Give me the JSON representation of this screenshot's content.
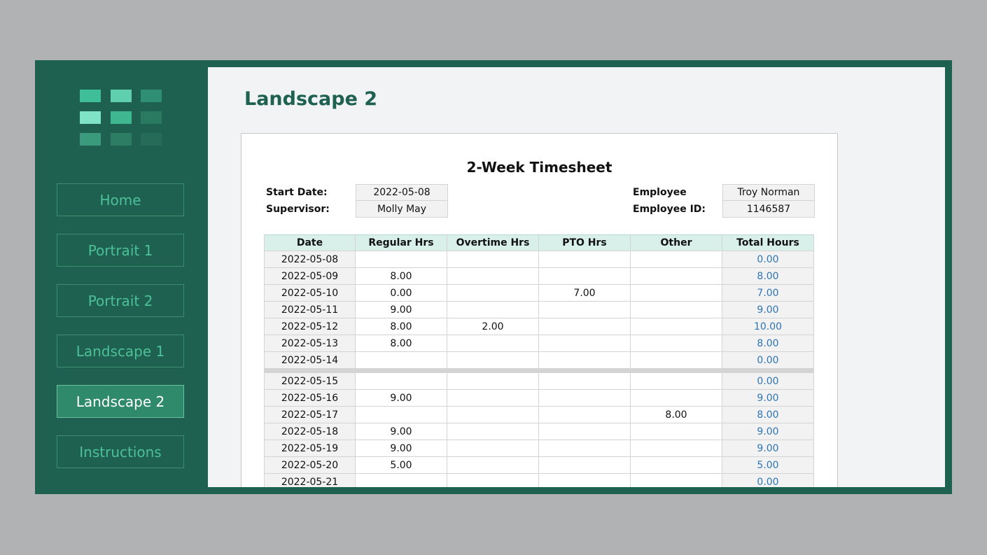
{
  "nav": [
    "Home",
    "Portrait 1",
    "Portrait 2",
    "Landscape 1",
    "Landscape 2",
    "Instructions"
  ],
  "active_nav": 4,
  "page_title": "Landscape 2",
  "sheet": {
    "title": "2-Week Timesheet",
    "info_left": [
      {
        "label": "Start Date:",
        "value": "2022-05-08"
      },
      {
        "label": "Supervisor:",
        "value": "Molly May"
      }
    ],
    "info_right": [
      {
        "label": "Employee",
        "value": "Troy Norman"
      },
      {
        "label": "Employee ID:",
        "value": "1146587"
      }
    ],
    "columns": [
      "Date",
      "Regular Hrs",
      "Overtime Hrs",
      "PTO Hrs",
      "Other",
      "Total Hours"
    ],
    "weeks": [
      [
        [
          "2022-05-08",
          null,
          null,
          null,
          null,
          "0.00"
        ],
        [
          "2022-05-09",
          "8.00",
          null,
          null,
          null,
          "8.00"
        ],
        [
          "2022-05-10",
          "0.00",
          null,
          "7.00",
          null,
          "7.00"
        ],
        [
          "2022-05-11",
          "9.00",
          null,
          null,
          null,
          "9.00"
        ],
        [
          "2022-05-12",
          "8.00",
          "2.00",
          null,
          null,
          "10.00"
        ],
        [
          "2022-05-13",
          "8.00",
          null,
          null,
          null,
          "8.00"
        ],
        [
          "2022-05-14",
          null,
          null,
          null,
          null,
          "0.00"
        ]
      ],
      [
        [
          "2022-05-15",
          null,
          null,
          null,
          null,
          "0.00"
        ],
        [
          "2022-05-16",
          "9.00",
          null,
          null,
          null,
          "9.00"
        ],
        [
          "2022-05-17",
          null,
          null,
          null,
          "8.00",
          "8.00"
        ],
        [
          "2022-05-18",
          "9.00",
          null,
          null,
          null,
          "9.00"
        ],
        [
          "2022-05-19",
          "9.00",
          null,
          null,
          null,
          "9.00"
        ],
        [
          "2022-05-20",
          "5.00",
          null,
          null,
          null,
          "5.00"
        ],
        [
          "2022-05-21",
          null,
          null,
          null,
          null,
          "0.00"
        ]
      ]
    ]
  }
}
